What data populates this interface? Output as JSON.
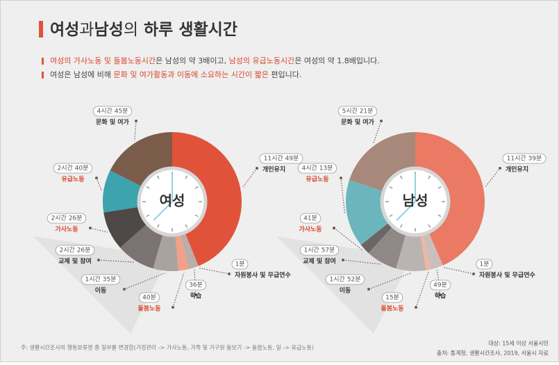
{
  "header": {
    "title": [
      {
        "text": "여성",
        "weight": "bold"
      },
      {
        "text": "과",
        "weight": "normal"
      },
      {
        "text": "남성",
        "weight": "bold"
      },
      {
        "text": "의",
        "weight": "normal"
      },
      {
        "text": " 하루 생활시간",
        "weight": "bold"
      }
    ],
    "notes": [
      [
        {
          "text": "여성의 가사노동 및 돌봄노동시간",
          "color": "#d9472b"
        },
        {
          "text": "은 남성의 약 3배이고, ",
          "color": "#444444"
        },
        {
          "text": "남성의 유급노동시간",
          "color": "#d9472b"
        },
        {
          "text": "은 여성의 약 1.8배입니다.",
          "color": "#444444"
        }
      ],
      [
        {
          "text": "여성은 남성에 비해 ",
          "color": "#444444"
        },
        {
          "text": "문화 및 여가활동과 이동에 소요하는 시간이 짧은",
          "color": "#d9472b"
        },
        {
          "text": " 편입니다.",
          "color": "#444444"
        }
      ]
    ]
  },
  "chart_data": [
    {
      "type": "donut",
      "center_label": "여성",
      "categories": [
        "개인유지",
        "자원봉사 및 무급연수",
        "학습",
        "돌봄노동",
        "이동",
        "교제 및 참여",
        "가사노동",
        "유급노동",
        "문화 및 여가"
      ],
      "values": [
        709,
        1,
        36,
        40,
        95,
        146,
        146,
        160,
        285
      ],
      "value_labels": [
        "11시간 49분",
        "1분",
        "36분",
        "40분",
        "1시간 35분",
        "2시간 26분",
        "2시간 26분",
        "2시간 40분",
        "4시간 45분"
      ],
      "colors": [
        "#e0533a",
        "#e8735a",
        "#b9aeaa",
        "#f2a087",
        "#a9a3a0",
        "#7a7372",
        "#4e4847",
        "#3da3ad",
        "#7b5c4b"
      ],
      "label_colors": [
        "#333333",
        "#333333",
        "#333333",
        "#d9472b",
        "#333333",
        "#333333",
        "#d9472b",
        "#d9472b",
        "#333333"
      ]
    },
    {
      "type": "donut",
      "center_label": "남성",
      "categories": [
        "개인유지",
        "자원봉사 및 무급연수",
        "학습",
        "돌봄노동",
        "이동",
        "교제 및 참여",
        "가사노동",
        "유급노동",
        "문화 및 여가"
      ],
      "values": [
        699,
        1,
        49,
        15,
        112,
        117,
        41,
        253,
        321
      ],
      "value_labels": [
        "11시간 39분",
        "1분",
        "49분",
        "15분",
        "1시간 52분",
        "1시간 57분",
        "41분",
        "4시간 13분",
        "5시간 21분"
      ],
      "colors": [
        "#ea7a63",
        "#ee937e",
        "#c9c0bc",
        "#f4b4a0",
        "#b9b4b1",
        "#8f8887",
        "#6c6564",
        "#6bb6bd",
        "#a8887a"
      ],
      "label_colors": [
        "#333333",
        "#333333",
        "#333333",
        "#d9472b",
        "#333333",
        "#333333",
        "#d9472b",
        "#d9472b",
        "#333333"
      ]
    }
  ],
  "footer": {
    "note": "주: 생활시간조사의 행동분류명 중 일부를 변경함(가정관리 -> 가사노동, 가족 및 가구원 돌보기 -> 돌봄노동, 일 -> 유급노동)",
    "target": "대상: 15세 이상 서울시민",
    "source": "출처: 통계청, 생활시간조사, 2019, 서울시 자료"
  }
}
